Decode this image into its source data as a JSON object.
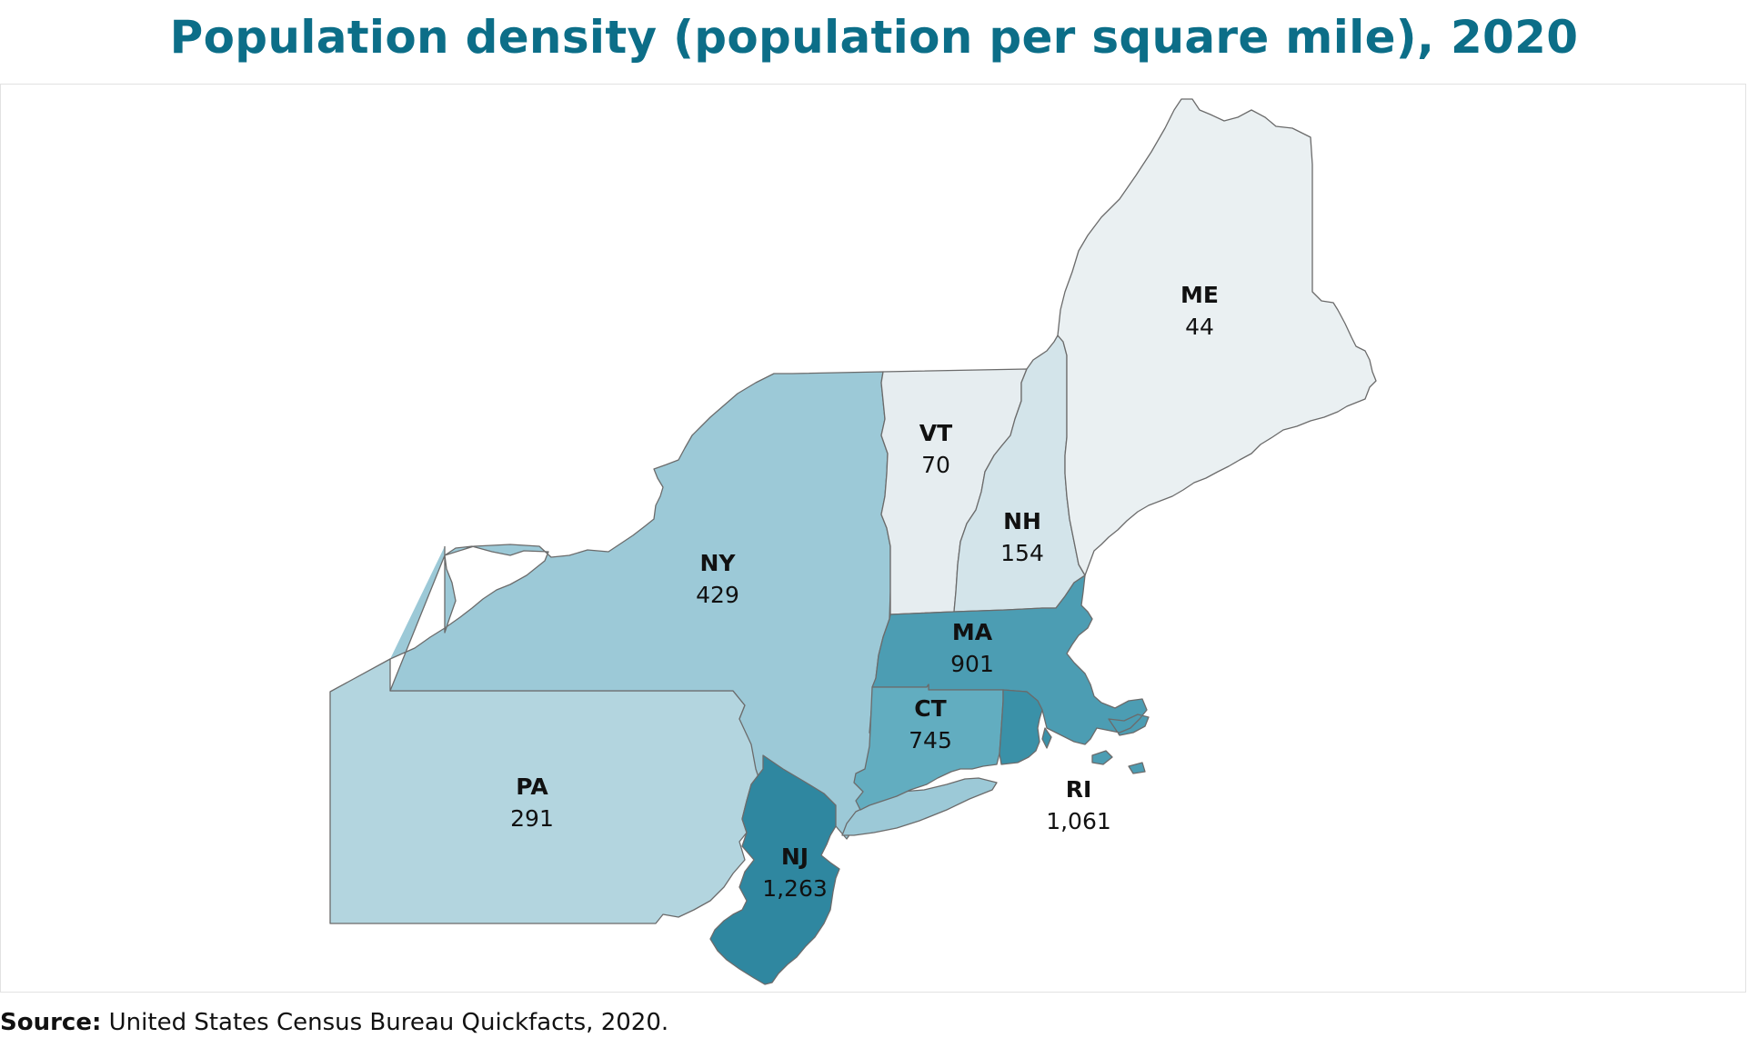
{
  "title": "Population density (population per square mile), 2020",
  "source": {
    "prefix": "Source:",
    "text": " United States Census Bureau Quickfacts, 2020."
  },
  "map_data": {
    "type": "choropleth",
    "metric": "Population per square mile",
    "year": "2020",
    "states": [
      {
        "abbr": "ME",
        "value": 44,
        "value_label": "44",
        "color": "#eaf0f2"
      },
      {
        "abbr": "VT",
        "value": 70,
        "value_label": "70",
        "color": "#e6edf0"
      },
      {
        "abbr": "NH",
        "value": 154,
        "value_label": "154",
        "color": "#d3e4ea"
      },
      {
        "abbr": "NY",
        "value": 429,
        "value_label": "429",
        "color": "#9cc9d7"
      },
      {
        "abbr": "PA",
        "value": 291,
        "value_label": "291",
        "color": "#b3d5df"
      },
      {
        "abbr": "MA",
        "value": 901,
        "value_label": "901",
        "color": "#4c9db3"
      },
      {
        "abbr": "CT",
        "value": 745,
        "value_label": "745",
        "color": "#62adc0"
      },
      {
        "abbr": "RI",
        "value": 1061,
        "value_label": "1,061",
        "color": "#3a91a8"
      },
      {
        "abbr": "NJ",
        "value": 1263,
        "value_label": "1,263",
        "color": "#2f87a0"
      }
    ]
  }
}
